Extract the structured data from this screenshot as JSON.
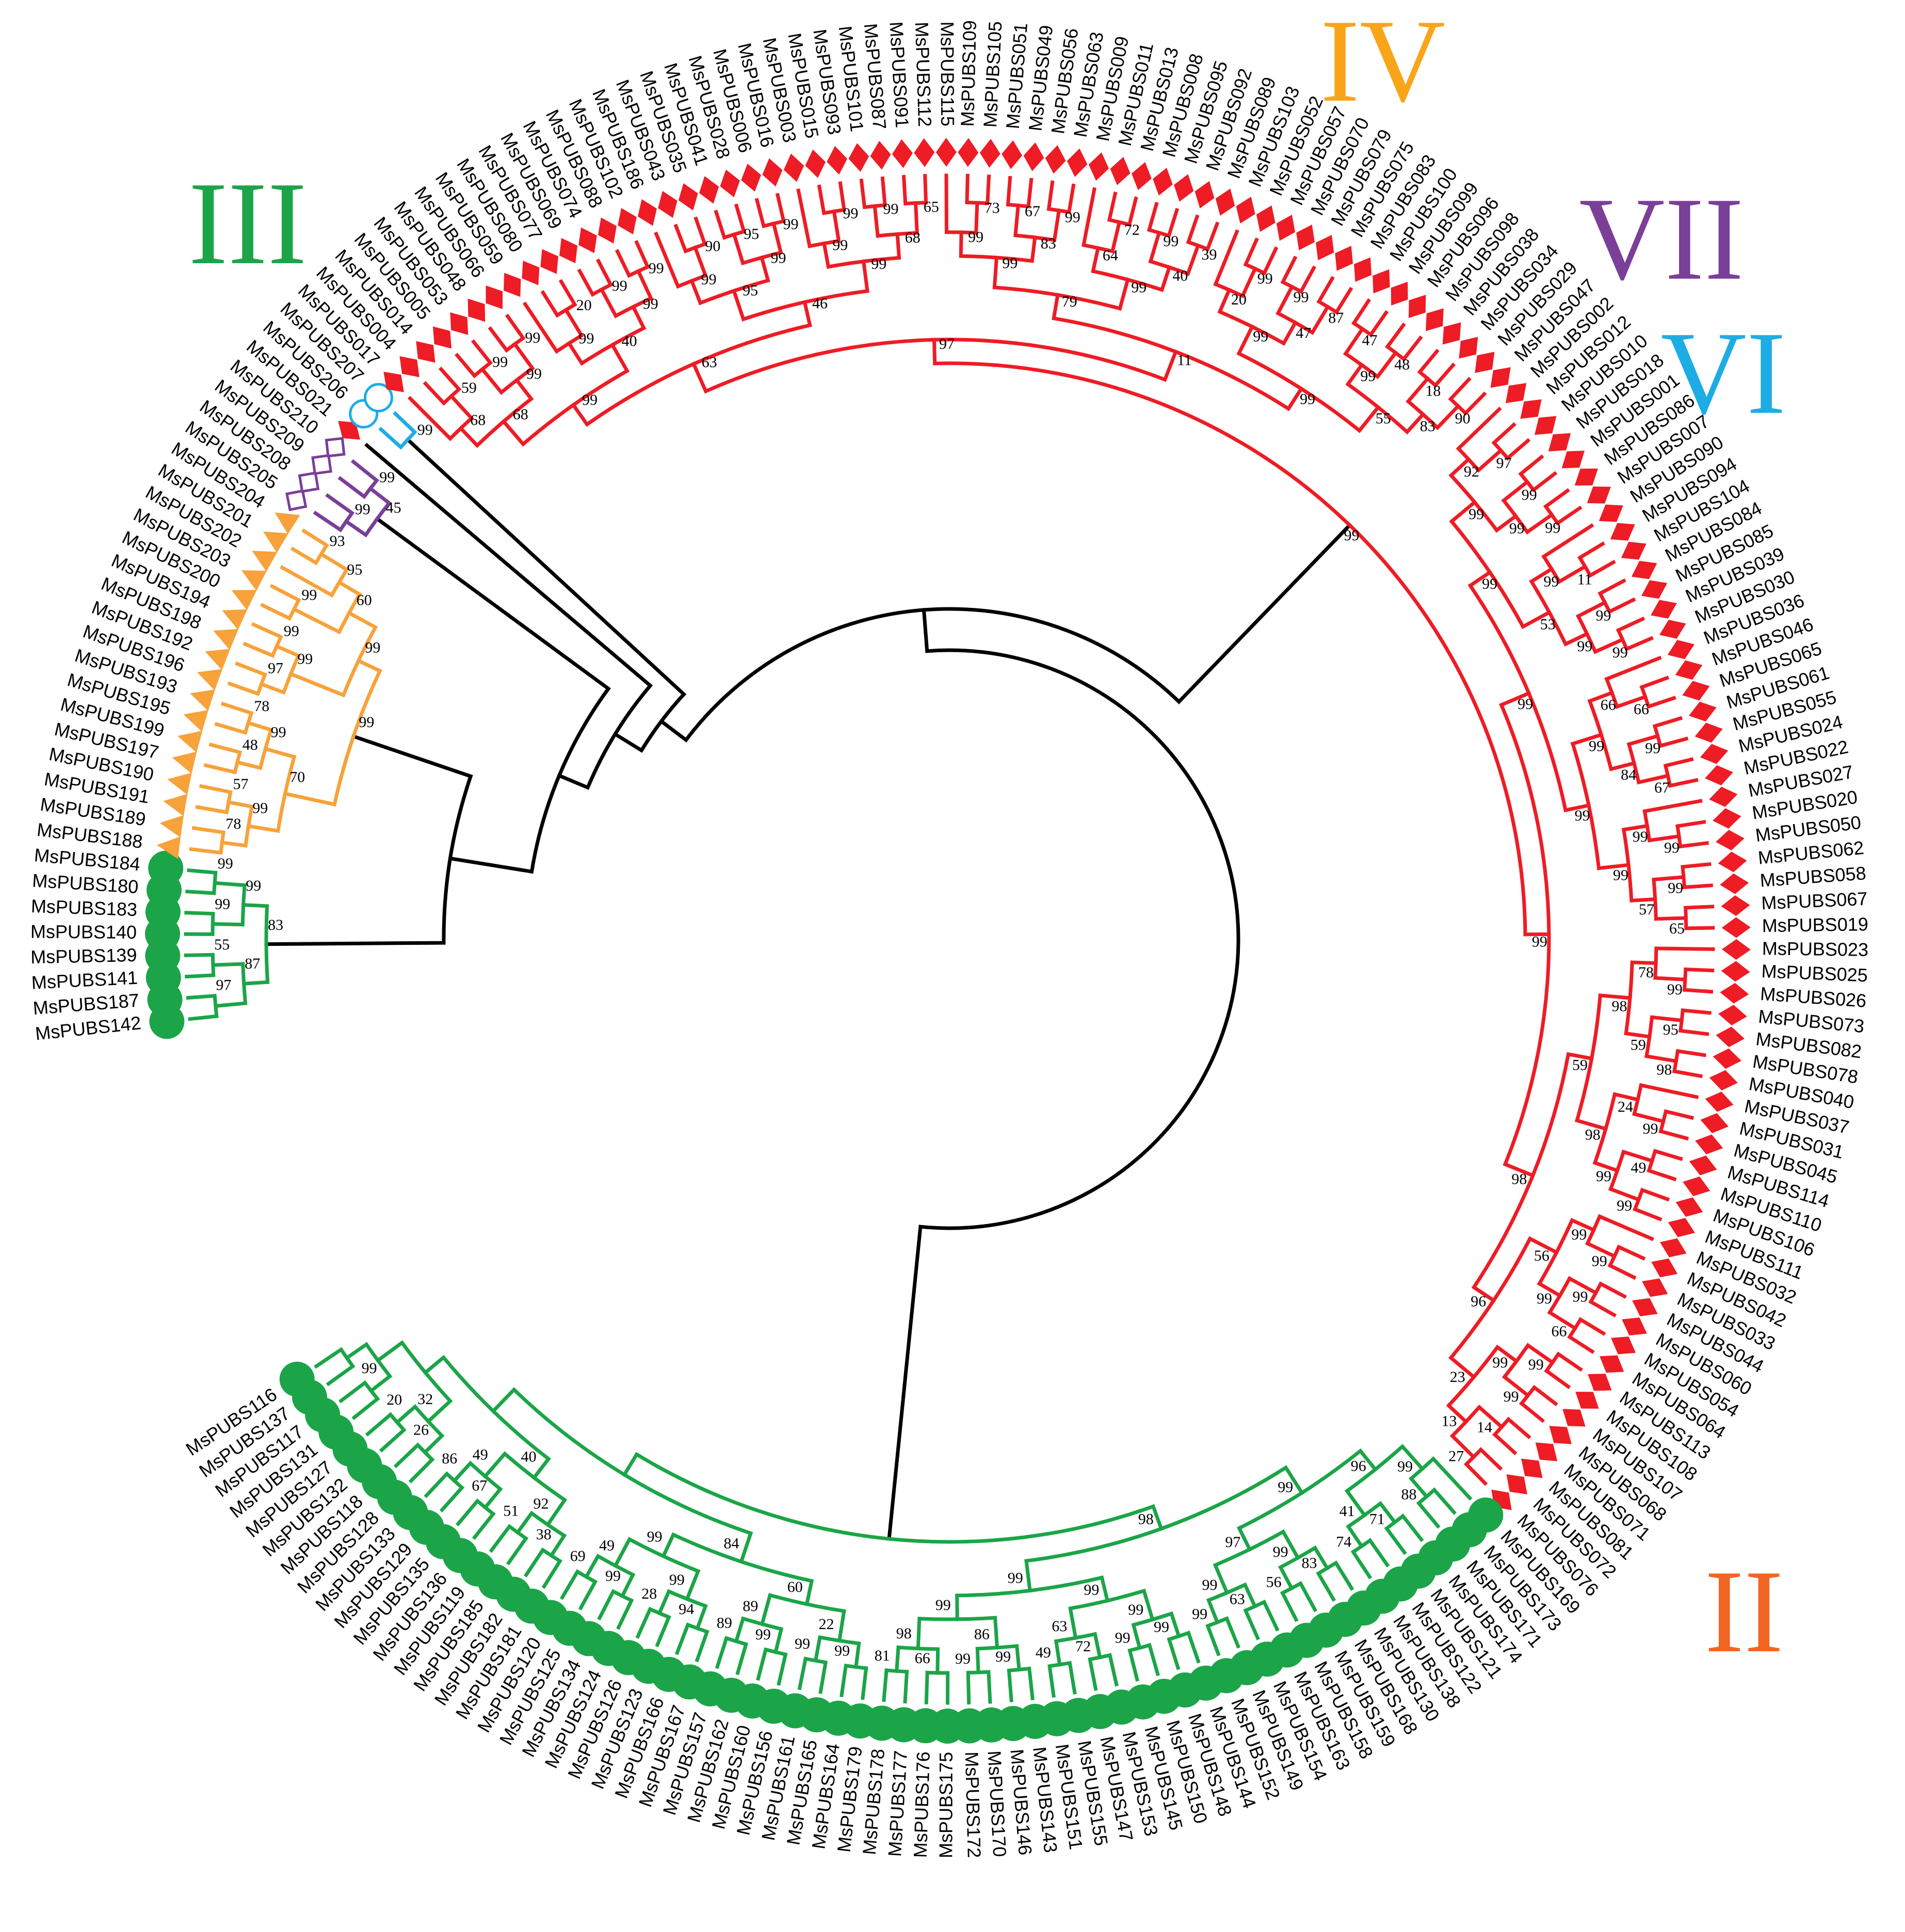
{
  "colors": {
    "II": "#ee1c25",
    "III": "#1ba548",
    "IV": "#f7a23a",
    "VI": "#1eace4",
    "VII": "#7a3f98",
    "spine": "#000000",
    "IV_label": "#f9a51a",
    "II_label": "#f26522"
  },
  "clade_labels": [
    {
      "id": "III",
      "text": "III",
      "color": "#1ba548"
    },
    {
      "id": "IV",
      "text": "IV",
      "color": "#f9a51a"
    },
    {
      "id": "VII",
      "text": "VII",
      "color": "#7a3f98"
    },
    {
      "id": "VI",
      "text": "VI",
      "color": "#1eace4"
    },
    {
      "id": "II",
      "text": "II",
      "color": "#f26522"
    }
  ],
  "marker_shapes": {
    "III": "filled-circle",
    "IV": "filled-triangle",
    "VII": "open-diamond",
    "VI": "open-circle",
    "II": "filled-diamond"
  },
  "groups": [
    {
      "clade": "III",
      "leaves": [
        "MsPUBS142",
        "MsPUBS187",
        "MsPUBS141",
        "MsPUBS139",
        "MsPUBS140",
        "MsPUBS183",
        "MsPUBS180",
        "MsPUBS184"
      ]
    },
    {
      "clade": "IV",
      "leaves": [
        "MsPUBS188",
        "MsPUBS189",
        "MsPUBS191",
        "MsPUBS190",
        "MsPUBS197",
        "MsPUBS199",
        "MsPUBS195",
        "MsPUBS193",
        "MsPUBS196",
        "MsPUBS192",
        "MsPUBS198",
        "MsPUBS194",
        "MsPUBS200",
        "MsPUBS203",
        "MsPUBS202",
        "MsPUBS201",
        "MsPUBS204"
      ]
    },
    {
      "clade": "VII",
      "leaves": [
        "MsPUBS205",
        "MsPUBS208",
        "MsPUBS209",
        "MsPUBS210"
      ]
    },
    {
      "clade": "II",
      "leaves": [
        "MsPUBS021"
      ]
    },
    {
      "clade": "VI",
      "leaves": [
        "MsPUBS206",
        "MsPUBS207"
      ]
    },
    {
      "clade": "II",
      "leaves": [
        "MsPUBS017",
        "MsPUBS004",
        "MsPUBS014",
        "MsPUBS005",
        "MsPUBS053",
        "MsPUBS048",
        "MsPUBS066",
        "MsPUBS059",
        "MsPUBS080",
        "MsPUBS077",
        "MsPUBS069",
        "MsPUBS074",
        "MsPUBS088",
        "MsPUBS102",
        "MsPUBS186",
        "MsPUBS043",
        "MsPUBS035",
        "MsPUBS041",
        "MsPUBS028",
        "MsPUBS006",
        "MsPUBS016",
        "MsPUBS003",
        "MsPUBS015",
        "MsPUBS093",
        "MsPUBS101",
        "MsPUBS087",
        "MsPUBS091",
        "MsPUBS112",
        "MsPUBS115",
        "MsPUBS109",
        "MsPUBS105",
        "MsPUBS051",
        "MsPUBS049",
        "MsPUBS056",
        "MsPUBS063",
        "MsPUBS009",
        "MsPUBS011",
        "MsPUBS013",
        "MsPUBS008",
        "MsPUBS095",
        "MsPUBS092",
        "MsPUBS089",
        "MsPUBS103",
        "MsPUBS052",
        "MsPUBS057",
        "MsPUBS070",
        "MsPUBS079",
        "MsPUBS075",
        "MsPUBS083",
        "MsPUBS100",
        "MsPUBS099",
        "MsPUBS096",
        "MsPUBS098",
        "MsPUBS038",
        "MsPUBS034",
        "MsPUBS029",
        "MsPUBS047",
        "MsPUBS002",
        "MsPUBS012",
        "MsPUBS010",
        "MsPUBS018",
        "MsPUBS001",
        "MsPUBS086",
        "MsPUBS007",
        "MsPUBS090",
        "MsPUBS094",
        "MsPUBS104",
        "MsPUBS084",
        "MsPUBS085",
        "MsPUBS039",
        "MsPUBS030",
        "MsPUBS036",
        "MsPUBS046",
        "MsPUBS065",
        "MsPUBS061",
        "MsPUBS055",
        "MsPUBS024",
        "MsPUBS022",
        "MsPUBS027",
        "MsPUBS020",
        "MsPUBS050",
        "MsPUBS062",
        "MsPUBS058",
        "MsPUBS067",
        "MsPUBS019",
        "MsPUBS023",
        "MsPUBS025",
        "MsPUBS026",
        "MsPUBS073",
        "MsPUBS082",
        "MsPUBS078",
        "MsPUBS040",
        "MsPUBS037",
        "MsPUBS031",
        "MsPUBS045",
        "MsPUBS114",
        "MsPUBS110",
        "MsPUBS106",
        "MsPUBS111",
        "MsPUBS032",
        "MsPUBS042",
        "MsPUBS033",
        "MsPUBS044",
        "MsPUBS060",
        "MsPUBS054",
        "MsPUBS064",
        "MsPUBS113",
        "MsPUBS108",
        "MsPUBS107",
        "MsPUBS068",
        "MsPUBS071",
        "MsPUBS081",
        "MsPUBS072",
        "MsPUBS076"
      ]
    },
    {
      "clade": "III",
      "leaves": [
        "MsPUBS169",
        "MsPUBS173",
        "MsPUBS171",
        "MsPUBS174",
        "MsPUBS121",
        "MsPUBS122",
        "MsPUBS138",
        "MsPUBS130",
        "MsPUBS168",
        "MsPUBS159",
        "MsPUBS158",
        "MsPUBS163",
        "MsPUBS154",
        "MsPUBS149",
        "MsPUBS152",
        "MsPUBS144",
        "MsPUBS148",
        "MsPUBS150",
        "MsPUBS145",
        "MsPUBS153",
        "MsPUBS147",
        "MsPUBS155",
        "MsPUBS151",
        "MsPUBS143",
        "MsPUBS146",
        "MsPUBS170",
        "MsPUBS172",
        "MsPUBS175",
        "MsPUBS176",
        "MsPUBS177",
        "MsPUBS178",
        "MsPUBS179",
        "MsPUBS164",
        "MsPUBS165",
        "MsPUBS161",
        "MsPUBS156",
        "MsPUBS160",
        "MsPUBS162",
        "MsPUBS157",
        "MsPUBS167",
        "MsPUBS166",
        "MsPUBS123",
        "MsPUBS126",
        "MsPUBS124",
        "MsPUBS134",
        "MsPUBS125",
        "MsPUBS120",
        "MsPUBS181",
        "MsPUBS182",
        "MsPUBS185",
        "MsPUBS119",
        "MsPUBS136",
        "MsPUBS135",
        "MsPUBS129",
        "MsPUBS133",
        "MsPUBS128",
        "MsPUBS118",
        "MsPUBS132",
        "MsPUBS127",
        "MsPUBS131",
        "MsPUBS117",
        "MsPUBS137",
        "MsPUBS116"
      ]
    }
  ],
  "bootstrap_values": [
    "97",
    "55",
    "87",
    "99",
    "99",
    "99",
    "83",
    "78",
    "57",
    "99",
    "48",
    "78",
    "99",
    "70",
    "97",
    "99",
    "99",
    "99",
    "93",
    "95",
    "60",
    "99",
    "99",
    "99",
    "99",
    "45",
    "99",
    "59",
    "68",
    "99",
    "99",
    "99",
    "68",
    "20",
    "99",
    "99",
    "99",
    "99",
    "40",
    "99",
    "90",
    "99",
    "95",
    "99",
    "99",
    "95",
    "99",
    "99",
    "99",
    "65",
    "68",
    "99",
    "46",
    "63",
    "73",
    "99",
    "67",
    "99",
    "83",
    "99",
    "72",
    "64",
    "99",
    "39",
    "40",
    "99",
    "79",
    "99",
    "20",
    "99",
    "87",
    "47",
    "99",
    "47",
    "48",
    "99",
    "18",
    "90",
    "83",
    "55",
    "99",
    "11",
    "97",
    "97",
    "92",
    "99",
    "99",
    "99",
    "99",
    "11",
    "99",
    "99",
    "99",
    "99",
    "53",
    "99",
    "66",
    "66",
    "99",
    "67",
    "84",
    "99",
    "99",
    "99",
    "99",
    "65",
    "57",
    "99",
    "99",
    "99",
    "99",
    "78",
    "95",
    "98",
    "59",
    "98",
    "99",
    "24",
    "49",
    "99",
    "99",
    "98",
    "59",
    "99",
    "99",
    "99",
    "66",
    "99",
    "56",
    "99",
    "99",
    "99",
    "14",
    "27",
    "13",
    "23",
    "96",
    "98",
    "99",
    "99",
    "88",
    "99",
    "71",
    "74",
    "41",
    "96",
    "83",
    "56",
    "99",
    "63",
    "99",
    "99",
    "97",
    "99",
    "99",
    "99",
    "99",
    "72",
    "49",
    "63",
    "99",
    "99",
    "99",
    "86",
    "66",
    "81",
    "98",
    "99",
    "99",
    "98",
    "99",
    "99",
    "22",
    "99",
    "89",
    "89",
    "60",
    "94",
    "28",
    "99",
    "99",
    "69",
    "49",
    "99",
    "84",
    "38",
    "51",
    "92",
    "67",
    "86",
    "49",
    "40",
    "26",
    "20",
    "32",
    "99"
  ]
}
